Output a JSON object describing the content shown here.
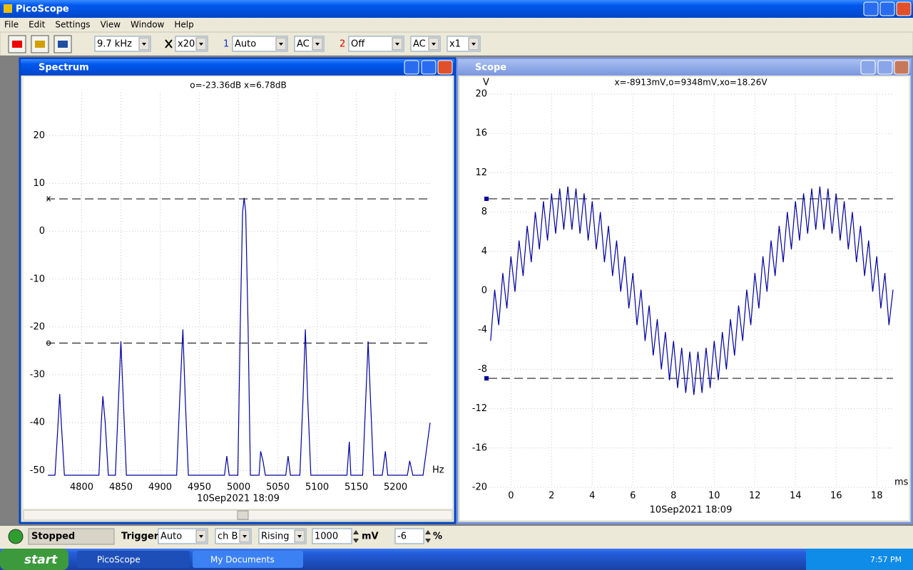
{
  "window": {
    "title": "PicoScope"
  },
  "menu": [
    "File",
    "Edit",
    "Settings",
    "View",
    "Window",
    "Help"
  ],
  "toolbar": {
    "timebase": "9.7 kHz",
    "zoom": "x20",
    "ch1_label": "1",
    "ch1_range": "Auto",
    "ch1_coupling": "AC",
    "ch2_label": "2",
    "ch2_range": "Off",
    "ch2_coupling": "AC",
    "multiplier": "x1"
  },
  "chart_data": [
    {
      "type": "line",
      "title": "Spectrum",
      "cursor_readout": "o=-23.36dB  x=6.78dB",
      "x_unit": "Hz",
      "timestamp": "10Sep2021  18:09",
      "x": [
        4757,
        4766,
        4770,
        4772,
        4774,
        4778,
        4822,
        4825,
        4827,
        4830,
        4834,
        4843,
        4847,
        4850,
        4853,
        4857,
        4921,
        4925,
        4929,
        4932,
        4936,
        4982,
        4985,
        4988,
        4999,
        5002,
        5005,
        5007,
        5009,
        5012,
        5015,
        5026,
        5028,
        5031,
        5034,
        5060,
        5063,
        5066,
        5078,
        5082,
        5085,
        5088,
        5092,
        5138,
        5141,
        5143,
        5158,
        5162,
        5165,
        5168,
        5172,
        5183,
        5187,
        5190,
        5215,
        5218,
        5222,
        5235,
        5244
      ],
      "series": [
        {
          "color": "#00009c",
          "values": [
            -51,
            -51,
            -40,
            -34,
            -40,
            -51,
            -51,
            -40,
            -34.5,
            -40,
            -51,
            -51,
            -35,
            -23,
            -35,
            -51,
            -51,
            -35,
            -20.5,
            -35,
            -51,
            -51,
            -47,
            -51,
            -51,
            -20,
            4,
            7,
            4,
            -20,
            -51,
            -51,
            -46,
            -48,
            -51,
            -51,
            -47,
            -51,
            -51,
            -35,
            -20.5,
            -35,
            -51,
            -51,
            -44,
            -51,
            -51,
            -35,
            -23,
            -35,
            -51,
            -51,
            -46,
            -51,
            -51,
            -48,
            -51,
            -51,
            -40
          ]
        }
      ],
      "xlim": [
        4755,
        5244
      ],
      "ylim": [
        -51,
        29
      ],
      "xticks": [
        4800,
        4850,
        4900,
        4950,
        5000,
        5050,
        5100,
        5150,
        5200
      ],
      "yticks": [
        20,
        10,
        0,
        -10,
        -20,
        -30,
        -40,
        -50
      ],
      "grid": true,
      "cursors": [
        {
          "label": "x",
          "value": 6.78
        },
        {
          "label": "o",
          "value": -23.36
        }
      ]
    },
    {
      "type": "line",
      "title": "Scope",
      "cursor_readout": "x=-8913mV,o=9348mV,xo=18.26V",
      "y_unit": "V",
      "x_unit": "ms",
      "timestamp": "10Sep2021  18:09",
      "x": [
        -1.0,
        -0.8,
        -0.6,
        -0.4,
        -0.2,
        0,
        0.2,
        0.4,
        0.6,
        0.8,
        1.0,
        1.2,
        1.4,
        1.6,
        1.8,
        2.0,
        2.2,
        2.4,
        2.6,
        2.8,
        3.0,
        3.2,
        3.4,
        3.6,
        3.8,
        4.0,
        4.2,
        4.4,
        4.6,
        4.8,
        5.0,
        5.2,
        5.4,
        5.6,
        5.8,
        6.0,
        6.2,
        6.4,
        6.6,
        6.8,
        7.0,
        7.2,
        7.4,
        7.6,
        7.8,
        8.0,
        8.2,
        8.4,
        8.6,
        8.8,
        9.0,
        9.2,
        9.4,
        9.6,
        9.8,
        10.0,
        10.2,
        10.4,
        10.6,
        10.8,
        11.0,
        11.2,
        11.4,
        11.6,
        11.8,
        12.0,
        12.2,
        12.4,
        12.6,
        12.8,
        13.0,
        13.2,
        13.4,
        13.6,
        13.8,
        14.0,
        14.2,
        14.4,
        14.6,
        14.8,
        15.0,
        15.2,
        15.4,
        15.6,
        15.8,
        16.0,
        16.2,
        16.4,
        16.6,
        16.8,
        17.0,
        17.2,
        17.4,
        17.6,
        17.8,
        18.0,
        18.2,
        18.4,
        18.6,
        18.8
      ],
      "series": [
        {
          "color": "#00009c",
          "values": [
            -5.1,
            0.1,
            -3.5,
            1.8,
            -1.8,
            3.5,
            -0.1,
            5.1,
            1.5,
            6.6,
            2.9,
            8.0,
            4.2,
            9.1,
            5.1,
            9.9,
            5.8,
            10.4,
            6.2,
            10.6,
            6.2,
            10.4,
            5.8,
            9.9,
            5.1,
            9.1,
            4.2,
            8.0,
            2.9,
            6.6,
            1.5,
            5.1,
            -0.1,
            3.5,
            -1.8,
            1.8,
            -3.5,
            0.1,
            -5.1,
            -1.5,
            -6.6,
            -2.9,
            -8.0,
            -4.2,
            -9.1,
            -5.1,
            -9.9,
            -5.8,
            -10.4,
            -6.2,
            -10.6,
            -6.2,
            -10.4,
            -5.8,
            -9.9,
            -5.1,
            -9.1,
            -4.2,
            -8.0,
            -2.9,
            -6.6,
            -1.5,
            -5.1,
            0.1,
            -3.5,
            1.8,
            -1.8,
            3.5,
            -0.1,
            5.1,
            1.5,
            6.6,
            2.9,
            8.0,
            4.2,
            9.1,
            5.1,
            9.9,
            5.8,
            10.4,
            6.2,
            10.6,
            6.2,
            10.4,
            5.8,
            9.9,
            5.1,
            9.1,
            4.2,
            8.0,
            2.9,
            6.6,
            1.5,
            5.1,
            -0.1,
            3.5,
            -1.8,
            1.8,
            -3.5,
            0.1
          ]
        }
      ],
      "xlim": [
        -1.1,
        18.8
      ],
      "ylim": [
        -20,
        20
      ],
      "xticks": [
        0,
        2,
        4,
        6,
        8,
        10,
        12,
        14,
        16,
        18
      ],
      "yticks": [
        20,
        16,
        12,
        8,
        4,
        0,
        -4,
        -8,
        -12,
        -16,
        -20
      ],
      "grid": true,
      "cursors": [
        {
          "value": 9.348
        },
        {
          "value": -8.913
        }
      ]
    }
  ],
  "status_bar": {
    "state": "Stopped",
    "trigger_label": "Trigger",
    "trigger_mode": "Auto",
    "trigger_channel": "ch B",
    "trigger_edge": "Rising",
    "trigger_level": "1000",
    "level_unit": "mV",
    "delay": "-6",
    "delay_unit": "%"
  },
  "taskbar": {
    "start": "start",
    "tasks": [
      "PicoScope",
      "My Documents"
    ],
    "clock": "7:57 PM"
  }
}
